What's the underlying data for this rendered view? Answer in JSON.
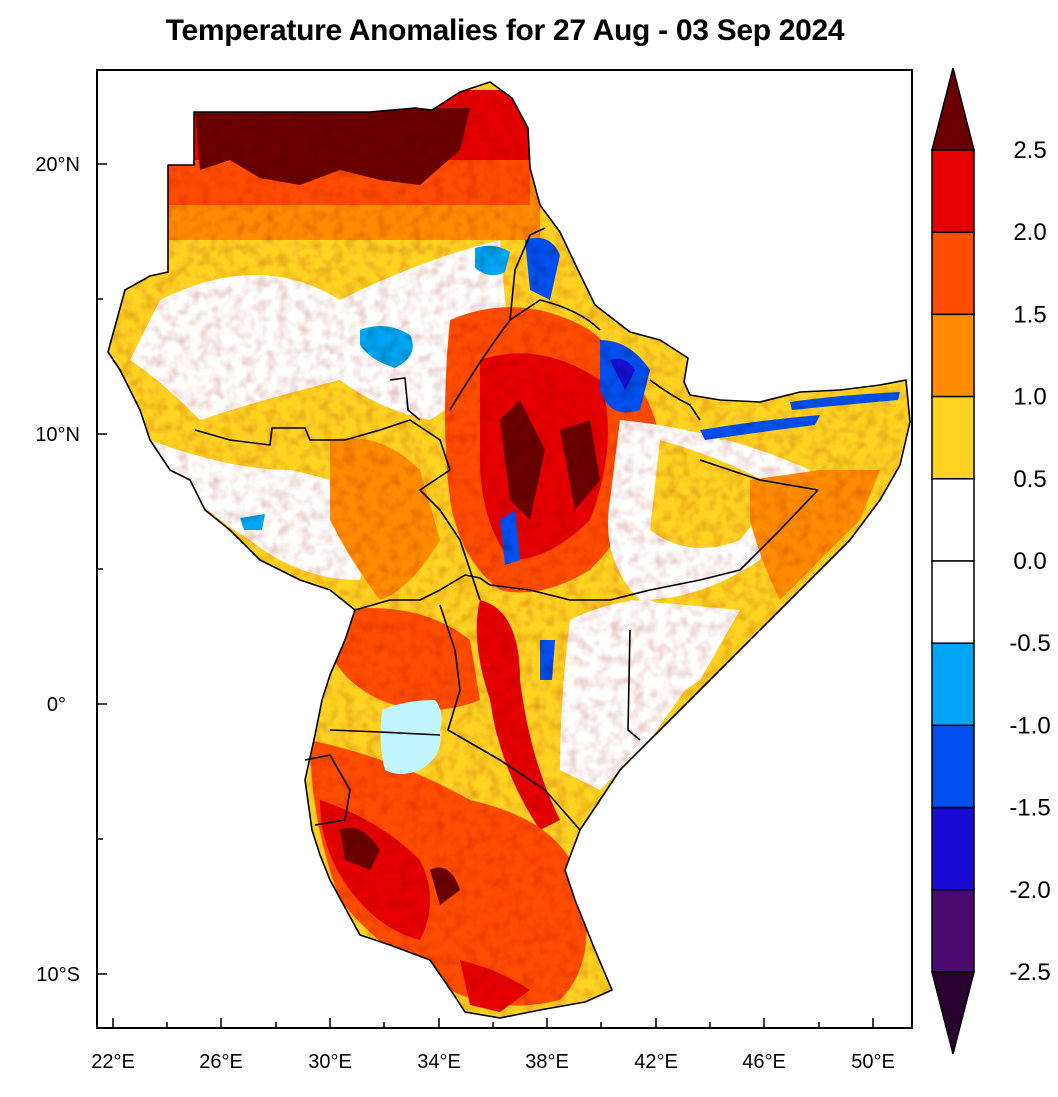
{
  "title": "Temperature Anomalies for 27 Aug - 03 Sep 2024",
  "map": {
    "lon_ticks": [
      "22°E",
      "26°E",
      "30°E",
      "34°E",
      "38°E",
      "42°E",
      "46°E",
      "50°E"
    ],
    "lat_ticks": [
      "20°N",
      "10°N",
      "0°",
      "10°S"
    ]
  },
  "colorbar": {
    "labels": [
      "2.5",
      "2.0",
      "1.5",
      "1.0",
      "0.5",
      "0.0",
      "-0.5",
      "-1.0",
      "-1.5",
      "-2.0",
      "-2.5"
    ],
    "colors": [
      "#6b0000",
      "#e60000",
      "#ff4d00",
      "#ff8c00",
      "#ffd323",
      "#ffffff",
      "#ffffff",
      "#00a5f5",
      "#0050f0",
      "#1a0ad6",
      "#4b0a6e",
      "#2a0030"
    ]
  },
  "colors": {
    "lake": "#bff6ff",
    "border": "#000000"
  }
}
